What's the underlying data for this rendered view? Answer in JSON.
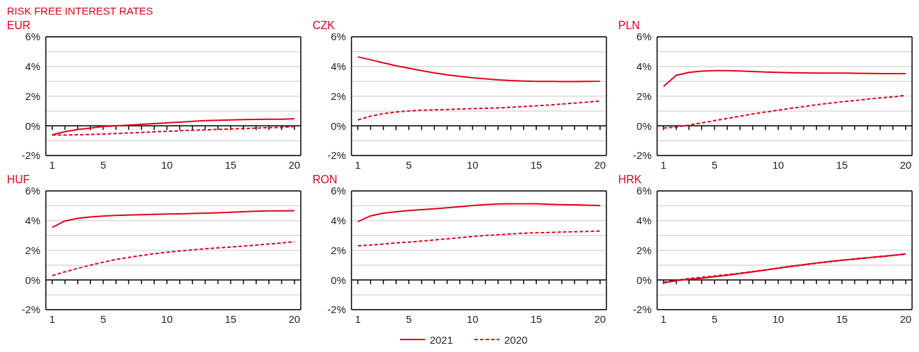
{
  "chart_data": [
    {
      "type": "line",
      "title": "EUR",
      "annotations": [
        "RISK FREE INTEREST RATES"
      ],
      "x": [
        1,
        2,
        3,
        4,
        5,
        6,
        7,
        8,
        9,
        10,
        11,
        12,
        13,
        14,
        15,
        16,
        17,
        18,
        19,
        20
      ],
      "xlim": [
        0.5,
        20.5
      ],
      "xticks": [
        1,
        {
          "value": 2,
          "label": null
        },
        {
          "value": 3,
          "label": null
        },
        {
          "value": 4,
          "label": null
        },
        5,
        {
          "value": 6,
          "label": null
        },
        {
          "value": 7,
          "label": null
        },
        {
          "value": 8,
          "label": null
        },
        {
          "value": 9,
          "label": null
        },
        10,
        {
          "value": 11,
          "label": null
        },
        {
          "value": 12,
          "label": null
        },
        {
          "value": 13,
          "label": null
        },
        {
          "value": 14,
          "label": null
        },
        15,
        {
          "value": 16,
          "label": null
        },
        {
          "value": 17,
          "label": null
        },
        {
          "value": 18,
          "label": null
        },
        {
          "value": 19,
          "label": null
        },
        20
      ],
      "ylim": [
        -2,
        6
      ],
      "yticks": [
        {
          "value": -2,
          "label": "-2%"
        },
        {
          "value": -1,
          "label": null
        },
        {
          "value": 0,
          "label": "0%"
        },
        {
          "value": 1,
          "label": null
        },
        {
          "value": 2,
          "label": "2%"
        },
        {
          "value": 3,
          "label": null
        },
        {
          "value": 4,
          "label": "4%"
        },
        {
          "value": 5,
          "label": null
        },
        {
          "value": 6,
          "label": "6%"
        }
      ],
      "grid": "y",
      "marker": "none",
      "series": [
        {
          "color": "#e2001a",
          "line_style": "solid",
          "values": [
            -0.6,
            -0.4,
            -0.25,
            -0.15,
            -0.05,
            0,
            0.05,
            0.1,
            0.15,
            0.2,
            0.25,
            0.3,
            0.35,
            0.38,
            0.4,
            0.42,
            0.43,
            0.44,
            0.45,
            0.48
          ]
        },
        {
          "color": "#e2001a",
          "line_style": "dashed",
          "values": [
            -0.62,
            -0.62,
            -0.6,
            -0.58,
            -0.55,
            -0.52,
            -0.48,
            -0.45,
            -0.4,
            -0.37,
            -0.33,
            -0.3,
            -0.27,
            -0.24,
            -0.21,
            -0.18,
            -0.15,
            -0.12,
            -0.1,
            -0.05
          ]
        }
      ]
    },
    {
      "type": "line",
      "title": "CZK",
      "x": [
        1,
        2,
        3,
        4,
        5,
        6,
        7,
        8,
        9,
        10,
        11,
        12,
        13,
        14,
        15,
        16,
        17,
        18,
        19,
        20
      ],
      "xlim": [
        0.5,
        20.5
      ],
      "xticks": [
        1,
        {
          "value": 2,
          "label": null
        },
        {
          "value": 3,
          "label": null
        },
        {
          "value": 4,
          "label": null
        },
        5,
        {
          "value": 6,
          "label": null
        },
        {
          "value": 7,
          "label": null
        },
        {
          "value": 8,
          "label": null
        },
        {
          "value": 9,
          "label": null
        },
        10,
        {
          "value": 11,
          "label": null
        },
        {
          "value": 12,
          "label": null
        },
        {
          "value": 13,
          "label": null
        },
        {
          "value": 14,
          "label": null
        },
        15,
        {
          "value": 16,
          "label": null
        },
        {
          "value": 17,
          "label": null
        },
        {
          "value": 18,
          "label": null
        },
        {
          "value": 19,
          "label": null
        },
        20
      ],
      "ylim": [
        -2,
        6
      ],
      "yticks": [
        {
          "value": -2,
          "label": "-2%"
        },
        {
          "value": -1,
          "label": null
        },
        {
          "value": 0,
          "label": "0%"
        },
        {
          "value": 1,
          "label": null
        },
        {
          "value": 2,
          "label": "2%"
        },
        {
          "value": 3,
          "label": null
        },
        {
          "value": 4,
          "label": "4%"
        },
        {
          "value": 5,
          "label": null
        },
        {
          "value": 6,
          "label": "6%"
        }
      ],
      "grid": "y",
      "marker": "none",
      "series": [
        {
          "color": "#e2001a",
          "line_style": "solid",
          "values": [
            4.65,
            4.45,
            4.25,
            4.05,
            3.88,
            3.72,
            3.57,
            3.44,
            3.33,
            3.24,
            3.17,
            3.1,
            3.05,
            3.02,
            3.0,
            3.0,
            2.98,
            2.98,
            2.99,
            3.0
          ]
        },
        {
          "color": "#e2001a",
          "line_style": "dashed",
          "values": [
            0.4,
            0.65,
            0.82,
            0.93,
            1.0,
            1.05,
            1.08,
            1.1,
            1.13,
            1.16,
            1.18,
            1.21,
            1.25,
            1.3,
            1.35,
            1.4,
            1.47,
            1.53,
            1.6,
            1.68
          ]
        }
      ]
    },
    {
      "type": "line",
      "title": "PLN",
      "x": [
        1,
        2,
        3,
        4,
        5,
        6,
        7,
        8,
        9,
        10,
        11,
        12,
        13,
        14,
        15,
        16,
        17,
        18,
        19,
        20
      ],
      "xlim": [
        0.5,
        20.5
      ],
      "xticks": [
        1,
        {
          "value": 2,
          "label": null
        },
        {
          "value": 3,
          "label": null
        },
        {
          "value": 4,
          "label": null
        },
        5,
        {
          "value": 6,
          "label": null
        },
        {
          "value": 7,
          "label": null
        },
        {
          "value": 8,
          "label": null
        },
        {
          "value": 9,
          "label": null
        },
        10,
        {
          "value": 11,
          "label": null
        },
        {
          "value": 12,
          "label": null
        },
        {
          "value": 13,
          "label": null
        },
        {
          "value": 14,
          "label": null
        },
        15,
        {
          "value": 16,
          "label": null
        },
        {
          "value": 17,
          "label": null
        },
        {
          "value": 18,
          "label": null
        },
        {
          "value": 19,
          "label": null
        },
        20
      ],
      "ylim": [
        -2,
        6
      ],
      "yticks": [
        {
          "value": -2,
          "label": "-2%"
        },
        {
          "value": -1,
          "label": null
        },
        {
          "value": 0,
          "label": "0%"
        },
        {
          "value": 1,
          "label": null
        },
        {
          "value": 2,
          "label": "2%"
        },
        {
          "value": 3,
          "label": null
        },
        {
          "value": 4,
          "label": "4%"
        },
        {
          "value": 5,
          "label": null
        },
        {
          "value": 6,
          "label": "6%"
        }
      ],
      "grid": "y",
      "marker": "none",
      "series": [
        {
          "color": "#e2001a",
          "line_style": "solid",
          "values": [
            2.65,
            3.4,
            3.6,
            3.68,
            3.72,
            3.72,
            3.7,
            3.66,
            3.63,
            3.6,
            3.58,
            3.57,
            3.56,
            3.55,
            3.55,
            3.54,
            3.53,
            3.52,
            3.52,
            3.52
          ]
        },
        {
          "color": "#e2001a",
          "line_style": "dashed",
          "values": [
            -0.15,
            -0.08,
            0.05,
            0.2,
            0.35,
            0.5,
            0.65,
            0.8,
            0.93,
            1.05,
            1.18,
            1.3,
            1.42,
            1.52,
            1.62,
            1.7,
            1.8,
            1.88,
            1.95,
            2.05
          ]
        }
      ]
    },
    {
      "type": "line",
      "title": "HUF",
      "x": [
        1,
        2,
        3,
        4,
        5,
        6,
        7,
        8,
        9,
        10,
        11,
        12,
        13,
        14,
        15,
        16,
        17,
        18,
        19,
        20
      ],
      "xlim": [
        0.5,
        20.5
      ],
      "xticks": [
        1,
        {
          "value": 2,
          "label": null
        },
        {
          "value": 3,
          "label": null
        },
        {
          "value": 4,
          "label": null
        },
        5,
        {
          "value": 6,
          "label": null
        },
        {
          "value": 7,
          "label": null
        },
        {
          "value": 8,
          "label": null
        },
        {
          "value": 9,
          "label": null
        },
        10,
        {
          "value": 11,
          "label": null
        },
        {
          "value": 12,
          "label": null
        },
        {
          "value": 13,
          "label": null
        },
        {
          "value": 14,
          "label": null
        },
        15,
        {
          "value": 16,
          "label": null
        },
        {
          "value": 17,
          "label": null
        },
        {
          "value": 18,
          "label": null
        },
        {
          "value": 19,
          "label": null
        },
        20
      ],
      "ylim": [
        -2,
        6
      ],
      "yticks": [
        {
          "value": -2,
          "label": "-2%"
        },
        {
          "value": -1,
          "label": null
        },
        {
          "value": 0,
          "label": "0%"
        },
        {
          "value": 1,
          "label": null
        },
        {
          "value": 2,
          "label": "2%"
        },
        {
          "value": 3,
          "label": null
        },
        {
          "value": 4,
          "label": "4%"
        },
        {
          "value": 5,
          "label": null
        },
        {
          "value": 6,
          "label": "6%"
        }
      ],
      "grid": "y",
      "marker": "none",
      "series": [
        {
          "color": "#e2001a",
          "line_style": "solid",
          "values": [
            3.54,
            3.98,
            4.15,
            4.25,
            4.3,
            4.35,
            4.38,
            4.4,
            4.42,
            4.45,
            4.46,
            4.48,
            4.5,
            4.53,
            4.56,
            4.6,
            4.63,
            4.65,
            4.66,
            4.67
          ]
        },
        {
          "color": "#e2001a",
          "line_style": "dashed",
          "values": [
            0.3,
            0.55,
            0.78,
            1.0,
            1.2,
            1.38,
            1.52,
            1.65,
            1.77,
            1.87,
            1.95,
            2.03,
            2.1,
            2.16,
            2.22,
            2.28,
            2.35,
            2.42,
            2.5,
            2.58
          ]
        }
      ]
    },
    {
      "type": "line",
      "title": "RON",
      "legend": "bottom",
      "x": [
        1,
        2,
        3,
        4,
        5,
        6,
        7,
        8,
        9,
        10,
        11,
        12,
        13,
        14,
        15,
        16,
        17,
        18,
        19,
        20
      ],
      "xlim": [
        0.5,
        20.5
      ],
      "xticks": [
        1,
        {
          "value": 2,
          "label": null
        },
        {
          "value": 3,
          "label": null
        },
        {
          "value": 4,
          "label": null
        },
        5,
        {
          "value": 6,
          "label": null
        },
        {
          "value": 7,
          "label": null
        },
        {
          "value": 8,
          "label": null
        },
        {
          "value": 9,
          "label": null
        },
        10,
        {
          "value": 11,
          "label": null
        },
        {
          "value": 12,
          "label": null
        },
        {
          "value": 13,
          "label": null
        },
        {
          "value": 14,
          "label": null
        },
        15,
        {
          "value": 16,
          "label": null
        },
        {
          "value": 17,
          "label": null
        },
        {
          "value": 18,
          "label": null
        },
        {
          "value": 19,
          "label": null
        },
        20
      ],
      "ylim": [
        -2,
        6
      ],
      "yticks": [
        {
          "value": -2,
          "label": "-2%"
        },
        {
          "value": -1,
          "label": null
        },
        {
          "value": 0,
          "label": "0%"
        },
        {
          "value": 1,
          "label": null
        },
        {
          "value": 2,
          "label": "2%"
        },
        {
          "value": 3,
          "label": null
        },
        {
          "value": 4,
          "label": "4%"
        },
        {
          "value": 5,
          "label": null
        },
        {
          "value": 6,
          "label": "6%"
        }
      ],
      "grid": "y",
      "marker": "none",
      "series": [
        {
          "name": "2021",
          "color": "#e2001a",
          "line_style": "solid",
          "values": [
            3.92,
            4.32,
            4.5,
            4.6,
            4.68,
            4.74,
            4.8,
            4.87,
            4.94,
            5.02,
            5.08,
            5.12,
            5.14,
            5.14,
            5.13,
            5.1,
            5.08,
            5.06,
            5.04,
            5.02
          ]
        },
        {
          "name": "2020",
          "color": "#e2001a",
          "line_style": "dashed",
          "values": [
            2.3,
            2.35,
            2.42,
            2.5,
            2.55,
            2.62,
            2.7,
            2.77,
            2.85,
            2.93,
            3.0,
            3.05,
            3.1,
            3.15,
            3.18,
            3.2,
            3.23,
            3.25,
            3.27,
            3.3
          ]
        }
      ]
    },
    {
      "type": "line",
      "title": "HRK",
      "x": [
        1,
        2,
        3,
        4,
        5,
        6,
        7,
        8,
        9,
        10,
        11,
        12,
        13,
        14,
        15,
        16,
        17,
        18,
        19,
        20
      ],
      "xlim": [
        0.5,
        20.5
      ],
      "xticks": [
        1,
        {
          "value": 2,
          "label": null
        },
        {
          "value": 3,
          "label": null
        },
        {
          "value": 4,
          "label": null
        },
        5,
        {
          "value": 6,
          "label": null
        },
        {
          "value": 7,
          "label": null
        },
        {
          "value": 8,
          "label": null
        },
        {
          "value": 9,
          "label": null
        },
        10,
        {
          "value": 11,
          "label": null
        },
        {
          "value": 12,
          "label": null
        },
        {
          "value": 13,
          "label": null
        },
        {
          "value": 14,
          "label": null
        },
        15,
        {
          "value": 16,
          "label": null
        },
        {
          "value": 17,
          "label": null
        },
        {
          "value": 18,
          "label": null
        },
        {
          "value": 19,
          "label": null
        },
        20
      ],
      "ylim": [
        -2,
        6
      ],
      "yticks": [
        {
          "value": -2,
          "label": "-2%"
        },
        {
          "value": -1,
          "label": null
        },
        {
          "value": 0,
          "label": "0%"
        },
        {
          "value": 1,
          "label": null
        },
        {
          "value": 2,
          "label": "2%"
        },
        {
          "value": 3,
          "label": null
        },
        {
          "value": 4,
          "label": "4%"
        },
        {
          "value": 5,
          "label": null
        },
        {
          "value": 6,
          "label": "6%"
        }
      ],
      "grid": "y",
      "marker": "none",
      "series": [
        {
          "color": "#e2001a",
          "line_style": "solid",
          "values": [
            -0.2,
            -0.05,
            0.05,
            0.12,
            0.22,
            0.32,
            0.43,
            0.55,
            0.67,
            0.8,
            0.92,
            1.03,
            1.14,
            1.24,
            1.33,
            1.42,
            1.5,
            1.58,
            1.66,
            1.75
          ]
        },
        {
          "color": "#e2001a",
          "line_style": "dashed",
          "values": [
            -0.15,
            -0.02,
            0.1,
            0.18,
            0.27,
            0.36,
            0.46,
            0.57,
            0.68,
            0.8,
            0.91,
            1.02,
            1.13,
            1.23,
            1.32,
            1.41,
            1.49,
            1.57,
            1.65,
            1.74
          ]
        }
      ]
    }
  ]
}
